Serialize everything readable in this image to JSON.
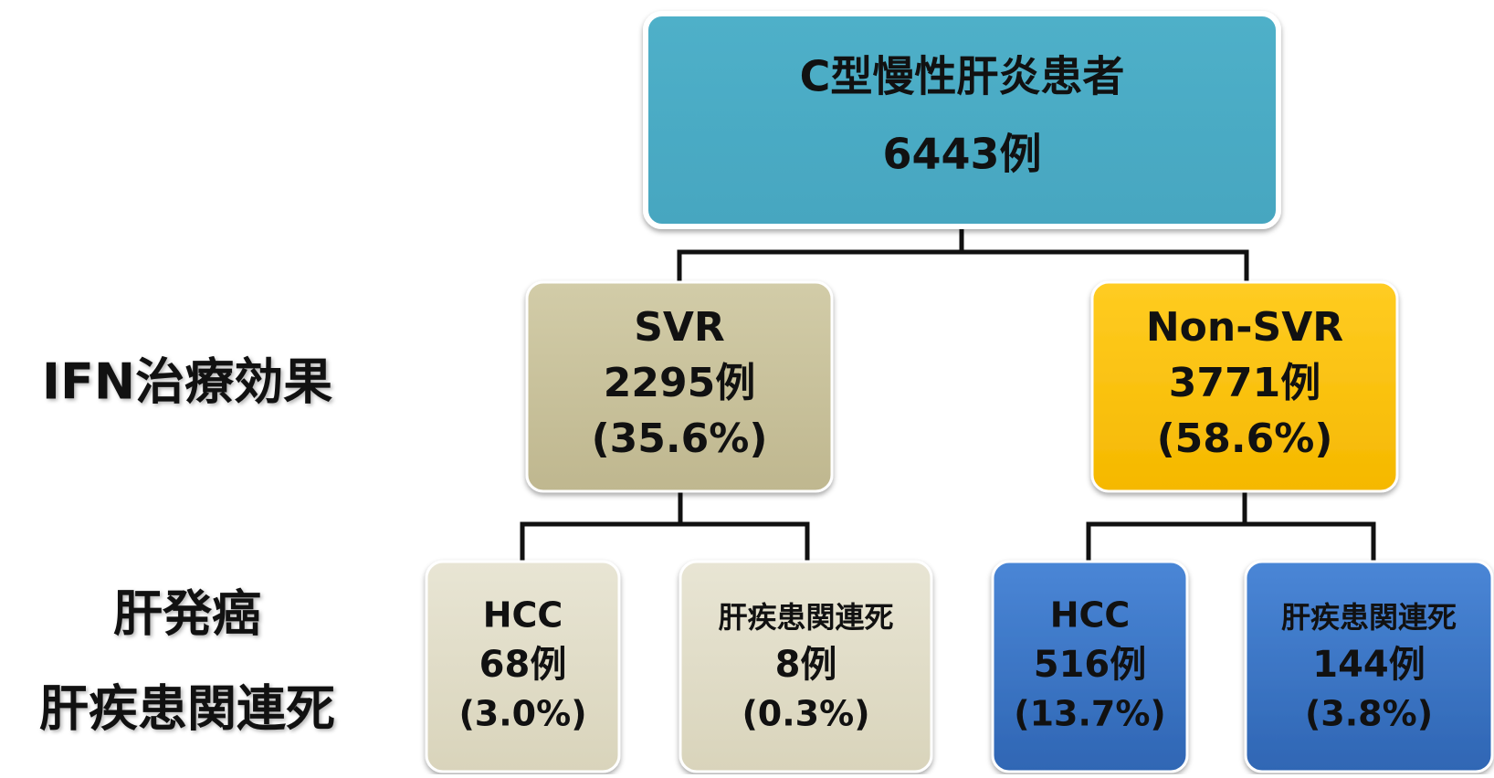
{
  "side_labels": [
    "IFN治療効果",
    "肝発癌",
    "肝疾患関連死"
  ],
  "nodes": [
    {
      "lines": [
        "C型慢性肝炎患者",
        "6443例"
      ]
    },
    {
      "lines": [
        "SVR",
        "2295例",
        "(35.6%)"
      ]
    },
    {
      "lines": [
        "Non-SVR",
        "3771例",
        "(58.6%)"
      ]
    },
    {
      "lines": [
        "HCC",
        "68例",
        "(3.0%)"
      ]
    },
    {
      "lines": [
        "肝疾患関連死",
        "8例",
        "(0.3%)"
      ]
    },
    {
      "lines": [
        "HCC",
        "516例",
        "(13.7%)"
      ]
    },
    {
      "lines": [
        "肝疾患関連死",
        "144例",
        "(3.8%)"
      ]
    }
  ]
}
